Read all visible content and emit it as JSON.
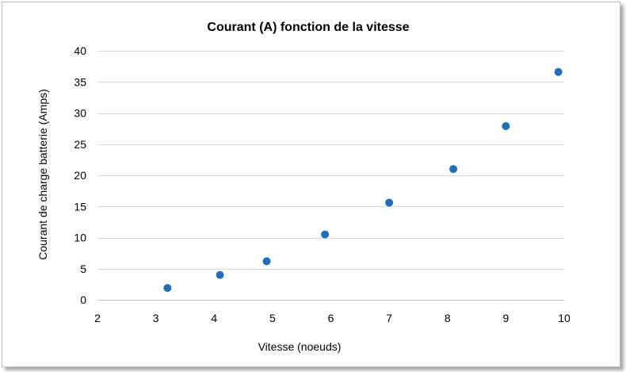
{
  "chart_data": {
    "type": "scatter",
    "title": "Courant (A) fonction de la vitesse",
    "xlabel": "Vitesse (noeuds)",
    "ylabel": "Courant de charge batterie (Amps)",
    "xlim": [
      2,
      10
    ],
    "ylim": [
      0,
      40
    ],
    "x_ticks": [
      "2",
      "3",
      "4",
      "5",
      "6",
      "7",
      "8",
      "9",
      "10"
    ],
    "y_ticks": [
      "0",
      "5",
      "10",
      "15",
      "20",
      "25",
      "30",
      "35",
      "40"
    ],
    "grid": true,
    "legend": "none",
    "marker_color": "#1f6fbf",
    "series": [
      {
        "x": [
          3.2,
          4.1,
          4.9,
          5.9,
          7.0,
          8.1,
          9.0,
          9.9
        ],
        "y": [
          1.9,
          4.0,
          6.2,
          10.5,
          15.6,
          21.0,
          27.9,
          36.6
        ]
      }
    ]
  }
}
